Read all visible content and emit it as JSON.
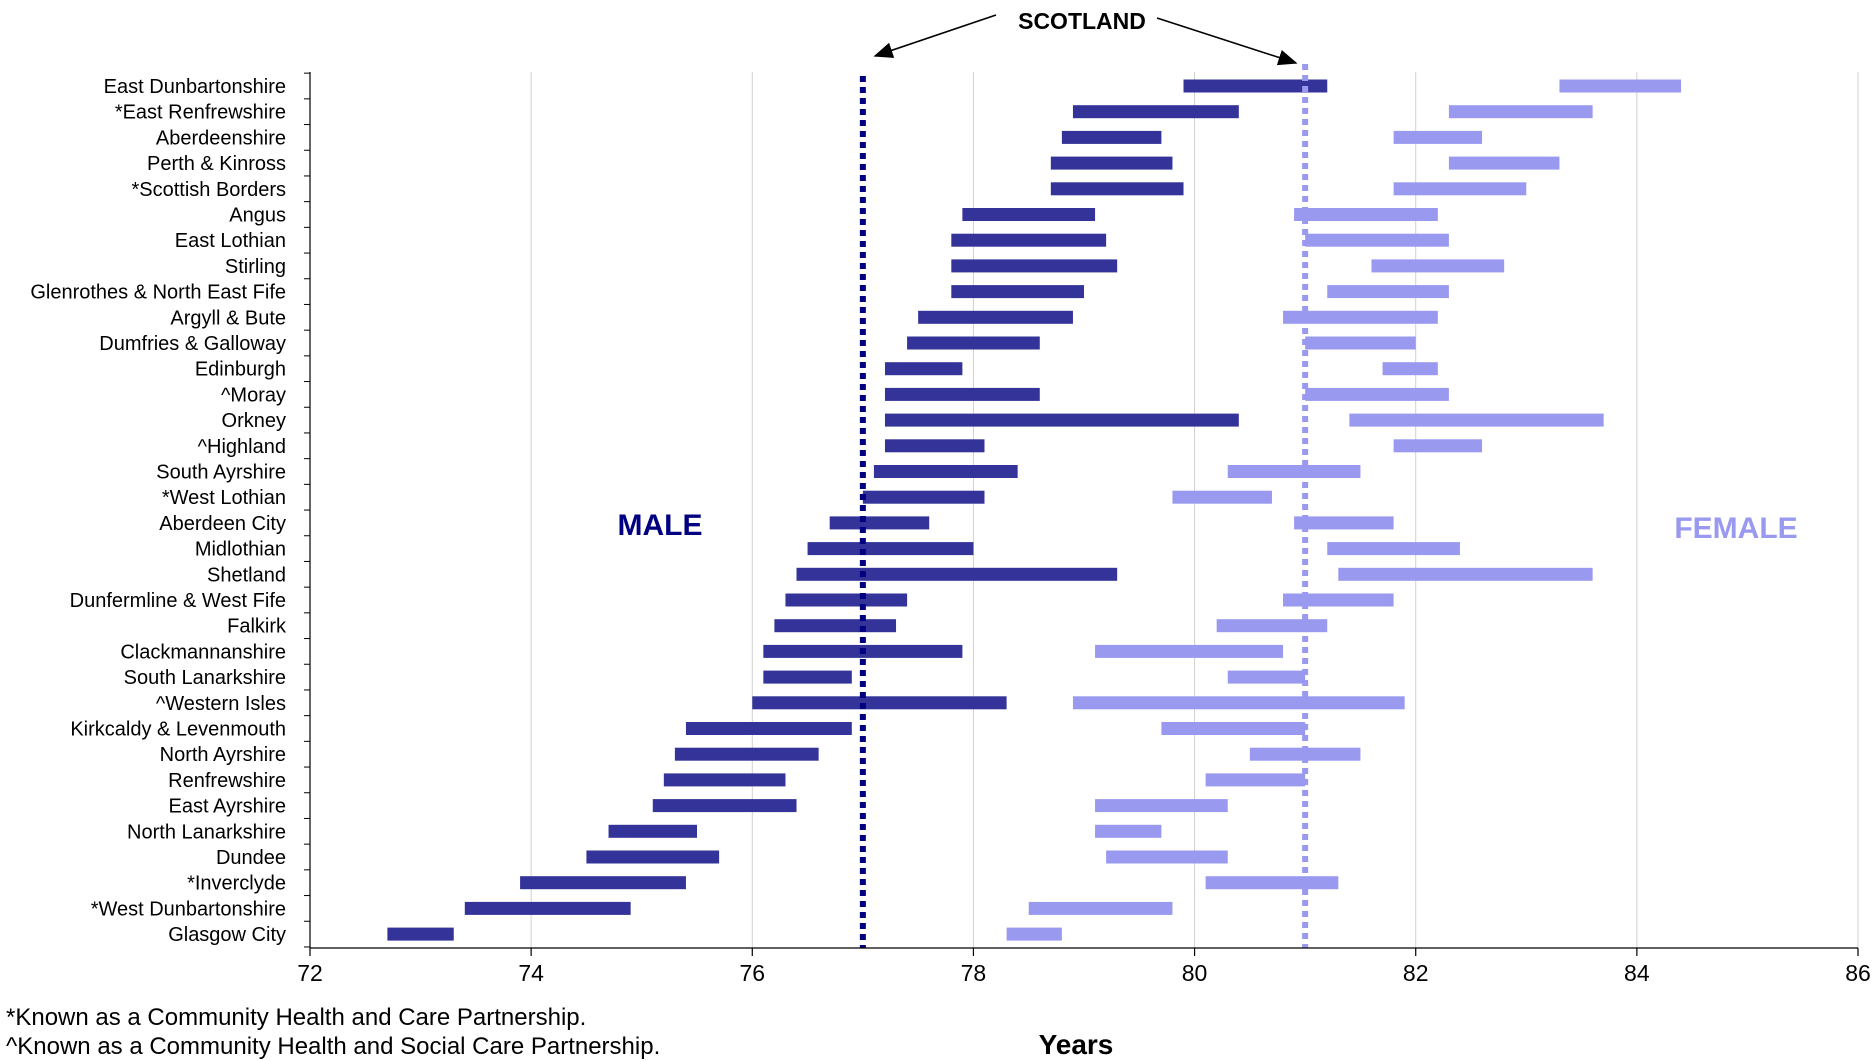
{
  "chart_data": {
    "type": "bar",
    "subtype": "floating-range",
    "title": "",
    "xlabel": "Years",
    "ylabel": "",
    "xlim": [
      72,
      86
    ],
    "xticks": [
      72,
      74,
      76,
      78,
      80,
      82,
      84,
      86
    ],
    "grid": "vertical",
    "categories": [
      "East Dunbartonshire",
      "*East Renfrewshire",
      "Aberdeenshire",
      "Perth & Kinross",
      "*Scottish Borders",
      "Angus",
      "East Lothian",
      "Stirling",
      "Glenrothes & North East Fife",
      "Argyll & Bute",
      "Dumfries & Galloway",
      "Edinburgh",
      "^Moray",
      "Orkney",
      "^Highland",
      "South Ayrshire",
      "*West Lothian",
      "Aberdeen City",
      "Midlothian",
      "Shetland",
      "Dunfermline & West Fife",
      "Falkirk",
      "Clackmannanshire",
      "South Lanarkshire",
      "^Western Isles",
      "Kirkcaldy & Levenmouth",
      "North Ayrshire",
      "Renfrewshire",
      "East Ayrshire",
      "North Lanarkshire",
      "Dundee",
      "*Inverclyde",
      "*West Dunbartonshire",
      "Glasgow City"
    ],
    "series": [
      {
        "name": "MALE",
        "color": "#33339a",
        "ranges": [
          [
            79.9,
            81.2
          ],
          [
            78.9,
            80.4
          ],
          [
            78.8,
            79.7
          ],
          [
            78.7,
            79.8
          ],
          [
            78.7,
            79.9
          ],
          [
            77.9,
            79.1
          ],
          [
            77.8,
            79.2
          ],
          [
            77.8,
            79.3
          ],
          [
            77.8,
            79.0
          ],
          [
            77.5,
            78.9
          ],
          [
            77.4,
            78.6
          ],
          [
            77.2,
            77.9
          ],
          [
            77.2,
            78.6
          ],
          [
            77.2,
            80.4
          ],
          [
            77.2,
            78.1
          ],
          [
            77.1,
            78.4
          ],
          [
            77.0,
            78.1
          ],
          [
            76.7,
            77.6
          ],
          [
            76.5,
            78.0
          ],
          [
            76.4,
            79.3
          ],
          [
            76.3,
            77.4
          ],
          [
            76.2,
            77.3
          ],
          [
            76.1,
            77.9
          ],
          [
            76.1,
            76.9
          ],
          [
            76.0,
            78.3
          ],
          [
            75.4,
            76.9
          ],
          [
            75.3,
            76.6
          ],
          [
            75.2,
            76.3
          ],
          [
            75.1,
            76.4
          ],
          [
            74.7,
            75.5
          ],
          [
            74.5,
            75.7
          ],
          [
            73.9,
            75.4
          ],
          [
            73.4,
            74.9
          ],
          [
            72.7,
            73.3
          ]
        ]
      },
      {
        "name": "FEMALE",
        "color": "#9999f0",
        "ranges": [
          [
            83.3,
            84.4
          ],
          [
            82.3,
            83.6
          ],
          [
            81.8,
            82.6
          ],
          [
            82.3,
            83.3
          ],
          [
            81.8,
            83.0
          ],
          [
            80.9,
            82.2
          ],
          [
            81.0,
            82.3
          ],
          [
            81.6,
            82.8
          ],
          [
            81.2,
            82.3
          ],
          [
            80.8,
            82.2
          ],
          [
            81.0,
            82.0
          ],
          [
            81.7,
            82.2
          ],
          [
            81.0,
            82.3
          ],
          [
            81.4,
            83.7
          ],
          [
            81.8,
            82.6
          ],
          [
            80.3,
            81.5
          ],
          [
            79.8,
            80.7
          ],
          [
            80.9,
            81.8
          ],
          [
            81.2,
            82.4
          ],
          [
            81.3,
            83.6
          ],
          [
            80.8,
            81.8
          ],
          [
            80.2,
            81.2
          ],
          [
            79.1,
            80.8
          ],
          [
            80.3,
            81.0
          ],
          [
            78.9,
            81.9
          ],
          [
            79.7,
            81.0
          ],
          [
            80.5,
            81.5
          ],
          [
            80.1,
            81.0
          ],
          [
            79.1,
            80.3
          ],
          [
            79.1,
            79.7
          ],
          [
            79.2,
            80.3
          ],
          [
            80.1,
            81.3
          ],
          [
            78.5,
            79.8
          ],
          [
            78.3,
            78.8
          ]
        ]
      }
    ],
    "reference_lines": [
      {
        "label": "SCOTLAND",
        "male_value": 77.0,
        "female_value": 81.0
      }
    ],
    "series_text_labels": {
      "male": "MALE",
      "female": "FEMALE"
    }
  },
  "footnotes": [
    "*Known as a Community Health and Care Partnership.",
    "^Known as a Community Health and Social Care Partnership."
  ]
}
